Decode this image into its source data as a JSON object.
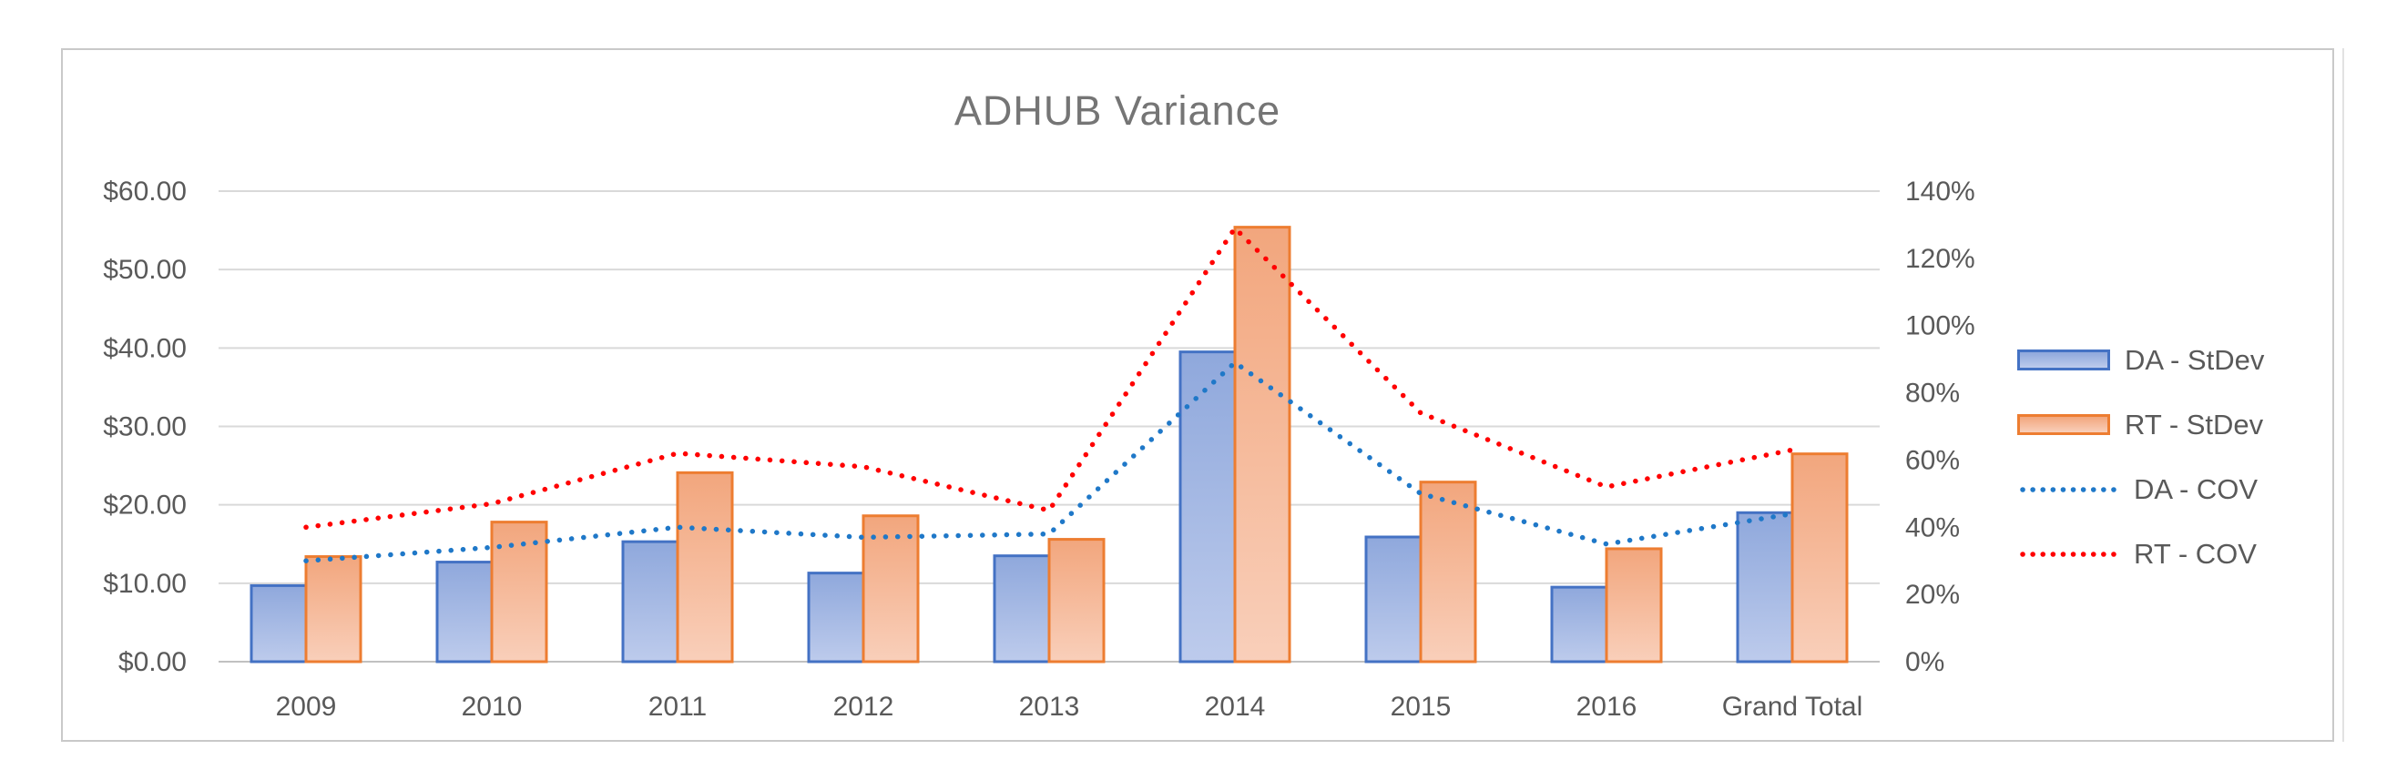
{
  "chart": {
    "title": "ADHUB Variance",
    "legend_items": [
      {
        "label": "DA - StDev",
        "swatch": "bar-blue"
      },
      {
        "label": "RT - StDev",
        "swatch": "bar-orange"
      },
      {
        "label": "DA - COV",
        "swatch": "dotted-blue"
      },
      {
        "label": "RT - COV",
        "swatch": "dotted-red"
      }
    ]
  },
  "colors": {
    "da_border": "#4472C4",
    "da_fill_top": "#8FA8DC",
    "da_fill_bottom": "#BDCBEC",
    "rt_border": "#ED7D31",
    "rt_fill_top": "#F2A67D",
    "rt_fill_bottom": "#F9CFBA",
    "da_line": "#1F78C8",
    "rt_line": "#FF0000",
    "gridline": "#D9D9D9",
    "axis_line": "#C1C1C1",
    "text": "#595959",
    "title_text": "#757575"
  },
  "chart_data": {
    "type": "combo: clustered bars (left $ axis) + dotted lines (right % axis)",
    "title": "ADHUB Variance",
    "categories": [
      "2009",
      "2010",
      "2011",
      "2012",
      "2013",
      "2014",
      "2015",
      "2016",
      "Grand Total"
    ],
    "series": [
      {
        "name": "DA - StDev",
        "type": "bar",
        "axis": "left",
        "color": "#4472C4",
        "values": [
          9.7,
          12.7,
          15.3,
          11.3,
          13.5,
          39.5,
          15.9,
          9.5,
          19.0
        ]
      },
      {
        "name": "RT - StDev",
        "type": "bar",
        "axis": "left",
        "color": "#ED7D31",
        "values": [
          13.4,
          17.8,
          24.1,
          18.6,
          15.6,
          55.4,
          22.9,
          14.4,
          26.5
        ]
      },
      {
        "name": "DA - COV",
        "type": "dotted-line",
        "axis": "right",
        "color": "#1F78C8",
        "values_pct": [
          30,
          34,
          40,
          37,
          38,
          89,
          50,
          35,
          44
        ]
      },
      {
        "name": "RT - COV",
        "type": "dotted-line",
        "axis": "right",
        "color": "#FF0000",
        "values_pct": [
          40,
          47,
          62,
          58,
          45,
          129,
          74,
          52,
          63
        ]
      }
    ],
    "left_axis": {
      "min": 0,
      "max": 60,
      "step": 10,
      "format": "$0.00",
      "ticks": [
        {
          "value": 60,
          "label": "$60.00"
        },
        {
          "value": 50,
          "label": "$50.00"
        },
        {
          "value": 40,
          "label": "$40.00"
        },
        {
          "value": 30,
          "label": "$30.00"
        },
        {
          "value": 20,
          "label": "$20.00"
        },
        {
          "value": 10,
          "label": "$10.00"
        },
        {
          "value": 0,
          "label": "$0.00"
        }
      ]
    },
    "right_axis": {
      "min": 0,
      "max": 140,
      "step": 20,
      "ticks": [
        {
          "value": 140,
          "label": "140%"
        },
        {
          "value": 120,
          "label": "120%"
        },
        {
          "value": 100,
          "label": "100%"
        },
        {
          "value": 80,
          "label": "80%"
        },
        {
          "value": 60,
          "label": "60%"
        },
        {
          "value": 40,
          "label": "40%"
        },
        {
          "value": 20,
          "label": "20%"
        },
        {
          "value": 0,
          "label": "0%"
        }
      ]
    },
    "gridlines": true,
    "legend_position": "right"
  }
}
